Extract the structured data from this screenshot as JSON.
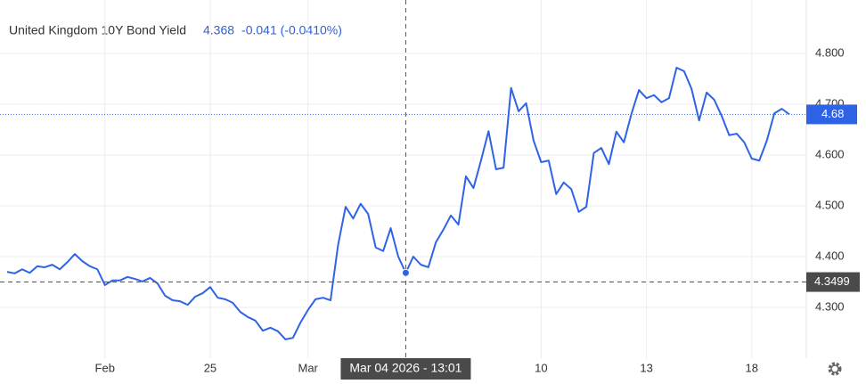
{
  "chart_data": {
    "type": "line",
    "title": "United Kingdom 10Y Bond Yield",
    "legend": {
      "value": 4.368,
      "change": "-0.041 (-0.0410%)"
    },
    "series": [
      {
        "name": "United Kingdom 10Y Bond Yield",
        "color": "#2f63e6",
        "values": [
          4.37,
          4.367,
          4.375,
          4.368,
          4.381,
          4.379,
          4.384,
          4.375,
          4.389,
          4.405,
          4.391,
          4.381,
          4.375,
          4.344,
          4.353,
          4.353,
          4.36,
          4.356,
          4.351,
          4.358,
          4.347,
          4.323,
          4.314,
          4.312,
          4.305,
          4.321,
          4.328,
          4.34,
          4.319,
          4.316,
          4.309,
          4.291,
          4.281,
          4.274,
          4.254,
          4.26,
          4.253,
          4.237,
          4.24,
          4.27,
          4.295,
          4.316,
          4.319,
          4.314,
          4.423,
          4.498,
          4.475,
          4.504,
          4.484,
          4.418,
          4.411,
          4.456,
          4.4,
          4.368,
          4.4,
          4.384,
          4.379,
          4.428,
          4.453,
          4.481,
          4.463,
          4.558,
          4.535,
          4.589,
          4.647,
          4.572,
          4.575,
          4.732,
          4.686,
          4.702,
          4.628,
          4.586,
          4.589,
          4.523,
          4.546,
          4.533,
          4.488,
          4.498,
          4.604,
          4.614,
          4.582,
          4.646,
          4.625,
          4.681,
          4.728,
          4.712,
          4.718,
          4.704,
          4.712,
          4.772,
          4.765,
          4.73,
          4.668,
          4.723,
          4.709,
          4.677,
          4.639,
          4.642,
          4.625,
          4.593,
          4.589,
          4.628,
          4.682,
          4.691,
          4.68
        ]
      }
    ],
    "xlim": [
      0,
      104
    ],
    "xticks": [
      {
        "value": 13,
        "label": "Feb"
      },
      {
        "value": 27,
        "label": "25"
      },
      {
        "value": 40,
        "label": "Mar"
      },
      {
        "value": 71,
        "label": "10"
      },
      {
        "value": 85,
        "label": "13"
      },
      {
        "value": 99,
        "label": "18"
      }
    ],
    "ylim": [
      4.2,
      4.9
    ],
    "yticks": [
      {
        "value": 4.3,
        "label": "4.300"
      },
      {
        "value": 4.4,
        "label": "4.400"
      },
      {
        "value": 4.5,
        "label": "4.500"
      },
      {
        "value": 4.6,
        "label": "4.600"
      },
      {
        "value": 4.7,
        "label": "4.700"
      },
      {
        "value": 4.8,
        "label": "4.800"
      }
    ],
    "grid": true,
    "last_price": {
      "value": 4.68,
      "label": "4.68",
      "color": "#2f63e6"
    },
    "crosshair": {
      "x": 53,
      "x_label": "Mar 04 2026 - 13:01",
      "y": 4.3499,
      "y_label": "4.3499"
    }
  }
}
